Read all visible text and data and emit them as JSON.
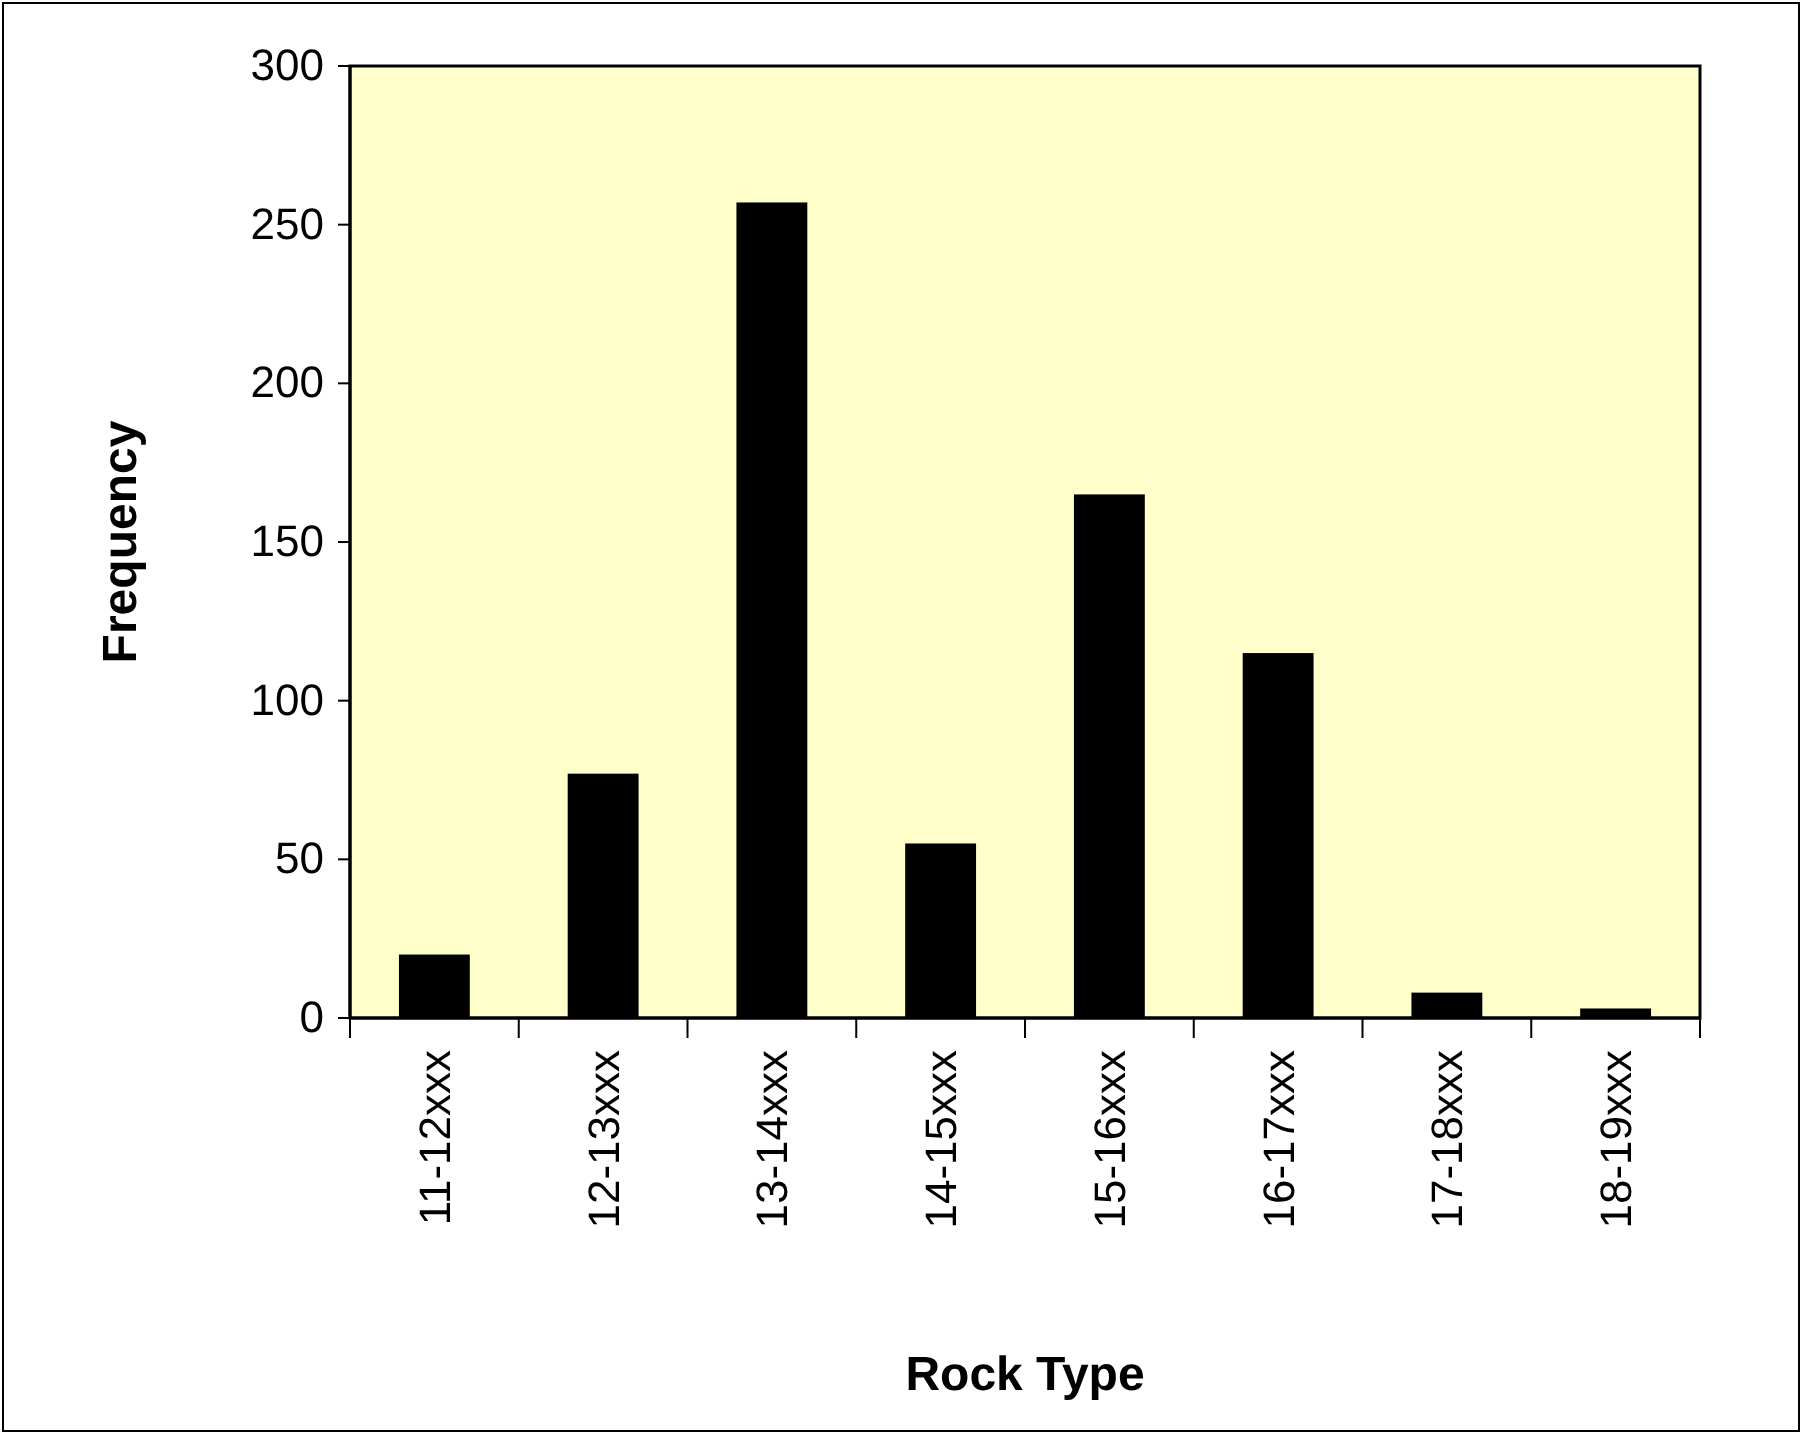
{
  "chart_data": {
    "type": "bar",
    "xlabel": "Rock Type",
    "ylabel": "Frequency",
    "categories": [
      "11-12xxx",
      "12-13xxx",
      "13-14xxx",
      "14-15xxx",
      "15-16xxx",
      "16-17xxx",
      "17-18xxx",
      "18-19xxx"
    ],
    "values": [
      20,
      77,
      257,
      55,
      165,
      115,
      8,
      3
    ],
    "color": "#000000",
    "ylim": [
      0,
      300
    ],
    "yticks": [
      0,
      50,
      100,
      150,
      200,
      250,
      300
    ],
    "grid": false
  }
}
